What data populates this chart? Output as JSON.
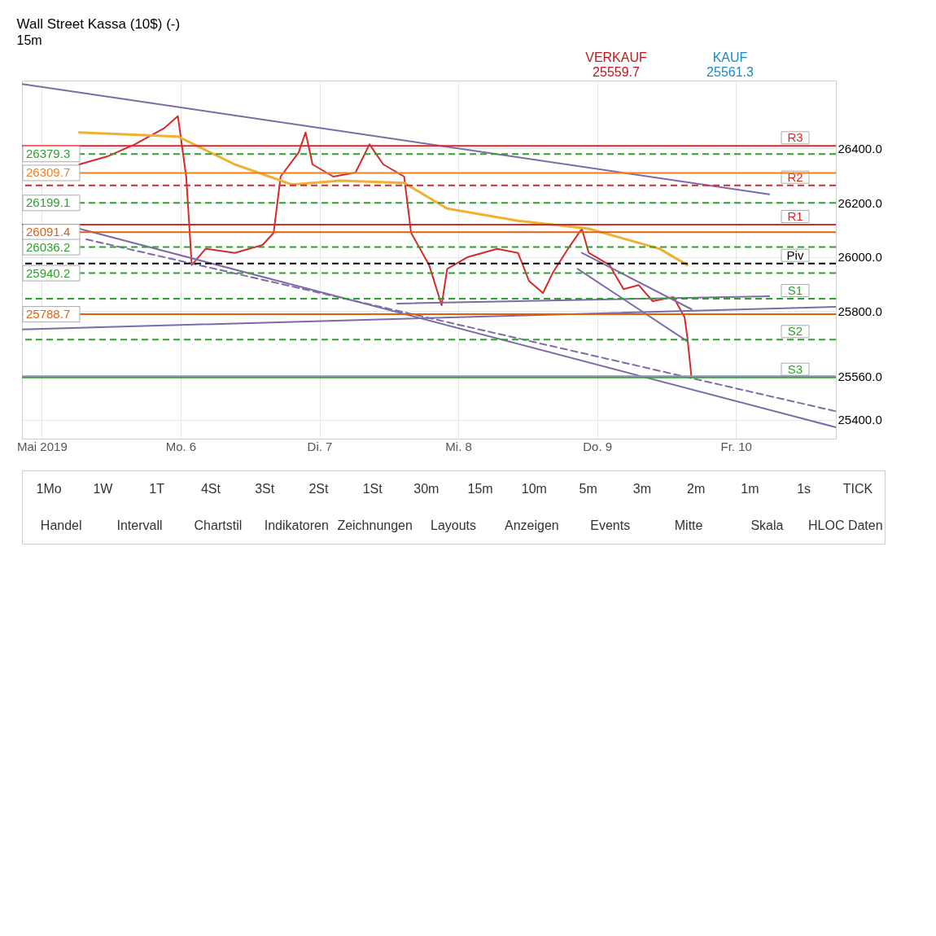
{
  "chart_data": {
    "type": "line",
    "title": "Wall Street Kassa (10$) (-)",
    "subtitle": "15m",
    "xlim": [
      4.857,
      10.72
    ],
    "ylim": [
      25330,
      26650
    ],
    "xticks": [
      {
        "value": 5,
        "label": "Mai 2019"
      },
      {
        "value": 6,
        "label": "Mo. 6"
      },
      {
        "value": 7,
        "label": "Di. 7"
      },
      {
        "value": 8,
        "label": "Mi. 8"
      },
      {
        "value": 9,
        "label": "Do. 9"
      },
      {
        "value": 10,
        "label": "Fr. 10"
      }
    ],
    "yticks": [
      {
        "value": 25400,
        "label": "25400.0"
      },
      {
        "value": 25560,
        "label": "25560.0"
      },
      {
        "value": 25800,
        "label": "25800.0"
      },
      {
        "value": 26000,
        "label": "26000.0"
      },
      {
        "value": 26200,
        "label": "26200.0"
      },
      {
        "value": 26400,
        "label": "26400.0"
      }
    ],
    "grid": true,
    "legend": false,
    "series": [
      {
        "color": "#d42a2a",
        "x": [
          5.27,
          5.47,
          5.67,
          5.88,
          5.98,
          6.04,
          6.08,
          6.18,
          6.39,
          6.59,
          6.67,
          6.72,
          6.85,
          6.9,
          6.95,
          7.1,
          7.26,
          7.36,
          7.46,
          7.61,
          7.66,
          7.79,
          7.88,
          7.92,
          8.07,
          8.28,
          8.43,
          8.51,
          8.61,
          8.68,
          8.79,
          8.89,
          8.94,
          9.09,
          9.19,
          9.3,
          9.4,
          9.55,
          9.63,
          9.65,
          9.68
        ],
        "values": [
          26341,
          26370,
          26415,
          26474,
          26519,
          26296,
          25970,
          26030,
          26015,
          26044,
          26089,
          26296,
          26385,
          26459,
          26341,
          26296,
          26311,
          26415,
          26341,
          26296,
          26089,
          25970,
          25822,
          25956,
          26000,
          26030,
          26015,
          25911,
          25867,
          25941,
          26030,
          26104,
          26015,
          25970,
          25881,
          25896,
          25837,
          25852,
          25778,
          25704,
          25556
        ]
      },
      {
        "color": "#f0b030",
        "x": [
          5.27,
          5.98,
          6.39,
          6.8,
          7.15,
          7.61,
          7.92,
          8.43,
          8.94,
          9.45,
          9.65
        ],
        "values": [
          26459,
          26444,
          26341,
          26267,
          26281,
          26273,
          26178,
          26133,
          26104,
          26030,
          25970
        ]
      },
      {
        "color": "#7f6aa8",
        "x": [
          4.857,
          10.24
        ],
        "values": [
          26637,
          26231
        ]
      },
      {
        "color": "#7f6aa8",
        "x": [
          5.27,
          10.72
        ],
        "values": [
          26104,
          25372
        ]
      },
      {
        "color": "#7f6aa8",
        "line_style": "dashed",
        "x": [
          5.32,
          10.72
        ],
        "values": [
          26065,
          25431
        ]
      },
      {
        "color": "#7f6aa8",
        "x": [
          4.857,
          10.72
        ],
        "values": [
          25733,
          25816
        ]
      },
      {
        "color": "#7f6aa8",
        "x": [
          7.56,
          10.24
        ],
        "values": [
          25828,
          25855
        ]
      },
      {
        "color": "#7f6aa8",
        "x": [
          8.89,
          9.68
        ],
        "values": [
          26015,
          25807
        ]
      },
      {
        "color": "#7f6aa8",
        "x": [
          8.86,
          9.65
        ],
        "values": [
          25956,
          25689
        ]
      }
    ],
    "ref_lines": [
      {
        "axis": "y",
        "value": 26409,
        "label": "R3",
        "color": "#d42a2a",
        "line_style": "solid"
      },
      {
        "axis": "y",
        "value": 26264,
        "label": "R2",
        "color": "#d42a2a",
        "line_style": "dashed"
      },
      {
        "axis": "y",
        "value": 26119,
        "label": "R1",
        "color": "#d42a2a",
        "line_style": "solid"
      },
      {
        "axis": "y",
        "value": 25976,
        "label": "Piv",
        "color": "#000000",
        "line_style": "dashed"
      },
      {
        "axis": "y",
        "value": 25846,
        "label": "S1",
        "color": "#2ca02c",
        "line_style": "dashed"
      },
      {
        "axis": "y",
        "value": 25695,
        "label": "S2",
        "color": "#2ca02c",
        "line_style": "dashed"
      },
      {
        "axis": "y",
        "value": 25556,
        "label": "S3",
        "color": "#2ca02c",
        "line_style": "solid"
      },
      {
        "axis": "y",
        "value": 26379.3,
        "label": "26379.3",
        "color": "#2ca02c",
        "line_style": "dashed"
      },
      {
        "axis": "y",
        "value": 26309.7,
        "label": "26309.7",
        "color": "#f08020",
        "line_style": "solid"
      },
      {
        "axis": "y",
        "value": 26199.1,
        "label": "26199.1",
        "color": "#2ca02c",
        "line_style": "dashed"
      },
      {
        "axis": "y",
        "value": 26091.4,
        "label": "26091.4",
        "color": "#e06010",
        "line_style": "solid"
      },
      {
        "axis": "y",
        "value": 26036.2,
        "label": "26036.2",
        "color": "#2ca02c",
        "line_style": "dashed"
      },
      {
        "axis": "y",
        "value": 25940.2,
        "label": "25940.2",
        "color": "#2ca02c",
        "line_style": "dashed"
      },
      {
        "axis": "y",
        "value": 25788.7,
        "label": "25788.7",
        "color": "#e06010",
        "line_style": "solid"
      },
      {
        "axis": "y",
        "value": 25560,
        "color": "#8899aa",
        "line_style": "solid"
      }
    ],
    "annotations": [
      "VERKAUF\n25559.7",
      "KAUF\n25561.3",
      "1Mo",
      "1W",
      "1T",
      "4St",
      "3St",
      "2St",
      "1St",
      "30m",
      "15m",
      "10m",
      "5m",
      "3m",
      "2m",
      "1m",
      "1s",
      "TICK",
      "Handel",
      "Intervall",
      "Chartstil",
      "Indikatoren",
      "Zeichnungen",
      "Layouts",
      "Anzeigen",
      "Events",
      "Mitte",
      "Skala",
      "HLOC Daten"
    ]
  }
}
